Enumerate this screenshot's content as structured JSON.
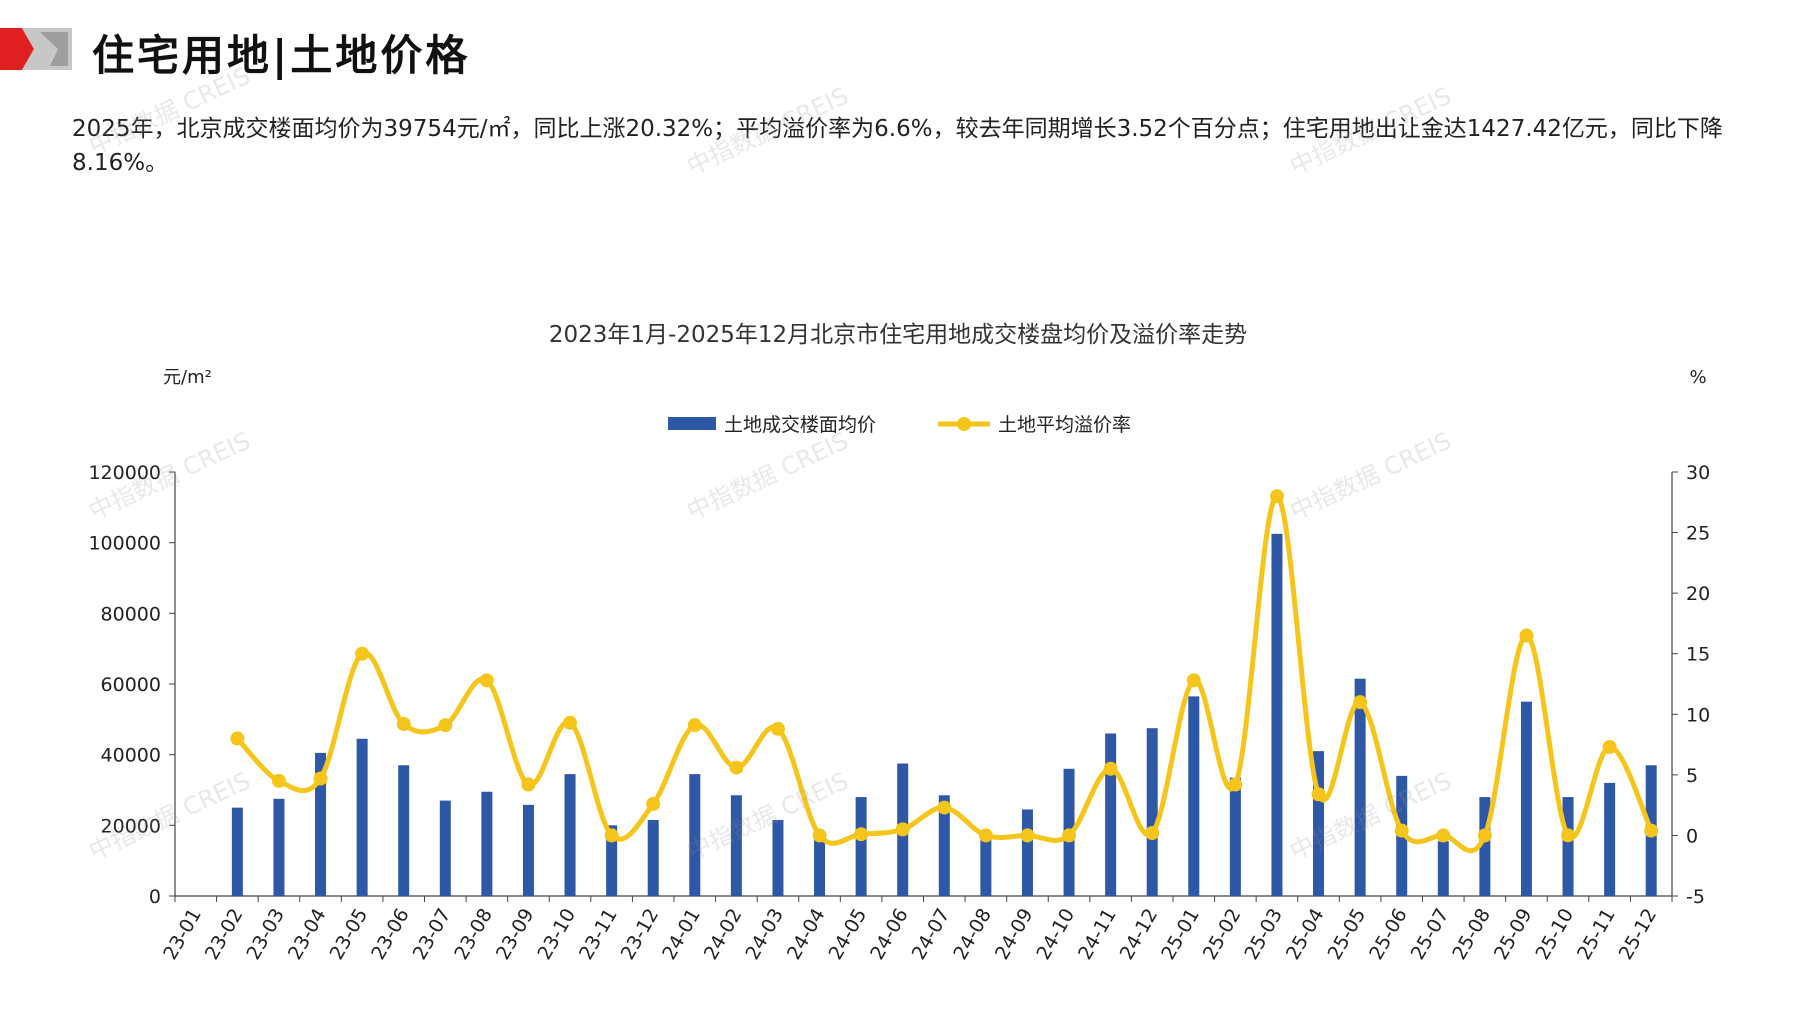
{
  "header": {
    "title": "住宅用地|土地价格",
    "colors": {
      "red": "#e02020",
      "gray": "#bdbdbd"
    }
  },
  "summary": {
    "text": "2025年，北京成交楼面均价为39754元/㎡，同比上涨20.32%；平均溢价率为6.6%，较去年同期增长3.52个百分点；住宅用地出让金达1427.42亿元，同比下降8.16%。"
  },
  "watermark": {
    "text": "中指数据 CREIS"
  },
  "chart_data": {
    "type": "bar",
    "title": "2023年1月-2025年12月北京市住宅用地成交楼盘均价及溢价率走势",
    "ylabel": "元/m²",
    "y2label": "%",
    "ylim": [
      0,
      120000
    ],
    "y2lim": [
      -5,
      30
    ],
    "yticks": [
      "0",
      "20000",
      "40000",
      "60000",
      "80000",
      "100000",
      "120000"
    ],
    "y2ticks": [
      "-5",
      "0",
      "5",
      "10",
      "15",
      "20",
      "25",
      "30"
    ],
    "legend_position": "top-center",
    "grid": false,
    "categories": [
      "23-01",
      "23-02",
      "23-03",
      "23-04",
      "23-05",
      "23-06",
      "23-07",
      "23-08",
      "23-09",
      "23-10",
      "23-11",
      "23-12",
      "24-01",
      "24-02",
      "24-03",
      "24-04",
      "24-05",
      "24-06",
      "24-07",
      "24-08",
      "24-09",
      "24-10",
      "24-11",
      "24-12",
      "25-01",
      "25-02",
      "25-03",
      "25-04",
      "25-05",
      "25-06",
      "25-07",
      "25-08",
      "25-09",
      "25-10",
      "25-11",
      "25-12"
    ],
    "series": [
      {
        "name": "土地成交楼面均价",
        "type": "bar",
        "axis": "left",
        "color": "#2e58a6",
        "values": [
          null,
          25000,
          27500,
          40500,
          44500,
          37000,
          27000,
          29500,
          25800,
          34500,
          20000,
          21500,
          34500,
          28500,
          21500,
          17500,
          28000,
          37500,
          28500,
          17000,
          24500,
          36000,
          46000,
          47500,
          56500,
          33500,
          102500,
          41000,
          61500,
          34000,
          15500,
          28000,
          55000,
          28000,
          32000,
          37000
        ]
      },
      {
        "name": "土地平均溢价率",
        "type": "line",
        "axis": "right",
        "color": "#f5c51b",
        "values": [
          null,
          8.0,
          4.5,
          4.7,
          15.0,
          9.2,
          9.1,
          12.8,
          4.2,
          9.3,
          0.0,
          2.6,
          9.1,
          5.6,
          8.8,
          0.0,
          0.1,
          0.5,
          2.3,
          0.0,
          0.0,
          0.0,
          5.5,
          0.2,
          12.8,
          4.2,
          28.0,
          3.4,
          11.0,
          0.4,
          0.0,
          0.0,
          16.5,
          0.0,
          7.3,
          0.4
        ]
      }
    ]
  }
}
